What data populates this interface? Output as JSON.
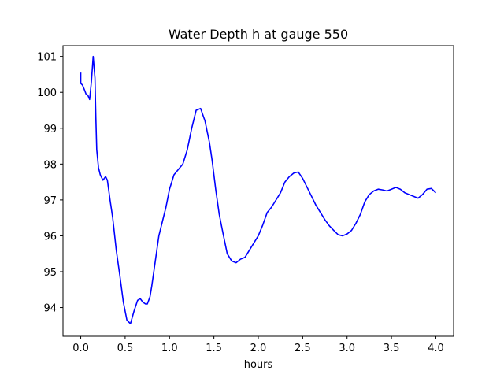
{
  "chart_data": {
    "type": "line",
    "title": "Water Depth h at gauge 550",
    "xlabel": "hours",
    "ylabel": "",
    "xlim": [
      -0.2,
      4.2
    ],
    "ylim": [
      93.2,
      101.3
    ],
    "xticks": [
      0.0,
      0.5,
      1.0,
      1.5,
      2.0,
      2.5,
      3.0,
      3.5,
      4.0
    ],
    "xtick_labels": [
      "0.0",
      "0.5",
      "1.0",
      "1.5",
      "2.0",
      "2.5",
      "3.0",
      "3.5",
      "4.0"
    ],
    "yticks": [
      94,
      95,
      96,
      97,
      98,
      99,
      100,
      101
    ],
    "ytick_labels": [
      "94",
      "95",
      "96",
      "97",
      "98",
      "99",
      "100",
      "101"
    ],
    "grid": false,
    "line_color": "#0000ff",
    "series": [
      {
        "x": [
          0.0,
          0.0,
          0.02,
          0.04,
          0.06,
          0.08,
          0.1,
          0.12,
          0.14,
          0.16,
          0.17,
          0.18,
          0.2,
          0.22,
          0.25,
          0.28,
          0.3,
          0.33,
          0.36,
          0.4,
          0.44,
          0.48,
          0.52,
          0.56,
          0.6,
          0.64,
          0.67,
          0.7,
          0.73,
          0.75,
          0.78,
          0.8,
          0.84,
          0.88,
          0.92,
          0.96,
          1.0,
          1.05,
          1.1,
          1.15,
          1.2,
          1.25,
          1.3,
          1.35,
          1.4,
          1.45,
          1.48,
          1.52,
          1.56,
          1.6,
          1.65,
          1.7,
          1.75,
          1.8,
          1.85,
          1.9,
          1.95,
          2.0,
          2.05,
          2.1,
          2.15,
          2.2,
          2.25,
          2.3,
          2.35,
          2.4,
          2.45,
          2.5,
          2.55,
          2.6,
          2.65,
          2.7,
          2.75,
          2.8,
          2.85,
          2.9,
          2.95,
          3.0,
          3.05,
          3.1,
          3.15,
          3.2,
          3.25,
          3.3,
          3.35,
          3.4,
          3.45,
          3.5,
          3.55,
          3.6,
          3.65,
          3.7,
          3.75,
          3.8,
          3.85,
          3.9,
          3.95,
          4.0
        ],
        "y": [
          100.55,
          100.25,
          100.2,
          100.08,
          99.95,
          99.92,
          99.8,
          100.3,
          101.0,
          100.4,
          99.3,
          98.4,
          97.9,
          97.7,
          97.55,
          97.65,
          97.55,
          97.0,
          96.5,
          95.6,
          94.9,
          94.15,
          93.65,
          93.55,
          93.9,
          94.2,
          94.25,
          94.15,
          94.1,
          94.1,
          94.3,
          94.6,
          95.3,
          96.0,
          96.4,
          96.8,
          97.3,
          97.7,
          97.85,
          98.0,
          98.4,
          99.0,
          99.5,
          99.55,
          99.2,
          98.6,
          98.1,
          97.3,
          96.6,
          96.1,
          95.5,
          95.3,
          95.25,
          95.35,
          95.4,
          95.6,
          95.8,
          96.0,
          96.3,
          96.65,
          96.8,
          97.0,
          97.2,
          97.5,
          97.65,
          97.75,
          97.78,
          97.6,
          97.35,
          97.1,
          96.85,
          96.65,
          96.45,
          96.28,
          96.15,
          96.03,
          96.0,
          96.05,
          96.15,
          96.35,
          96.6,
          96.95,
          97.15,
          97.25,
          97.3,
          97.28,
          97.25,
          97.3,
          97.35,
          97.3,
          97.2,
          97.15,
          97.1,
          97.05,
          97.15,
          97.3,
          97.32,
          97.2
        ]
      }
    ]
  }
}
